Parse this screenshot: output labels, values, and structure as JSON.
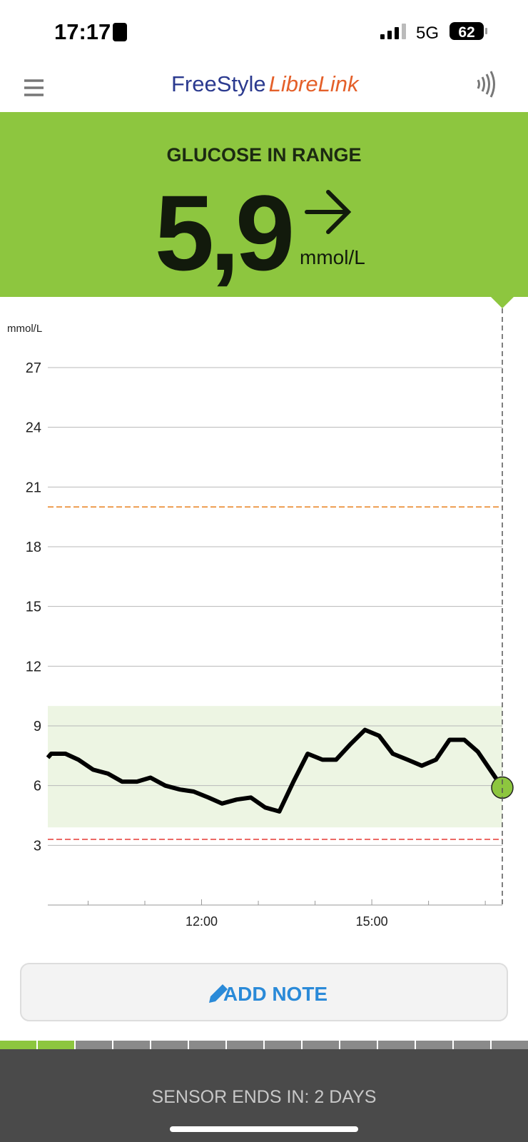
{
  "status_bar": {
    "time": "17:17",
    "network": "5G",
    "battery": "62"
  },
  "header": {
    "brand_1": "FreeStyle",
    "brand_2": "LibreLink"
  },
  "reading": {
    "status": "GLUCOSE IN RANGE",
    "value": "5,9",
    "unit": "mmol/L"
  },
  "chart_data": {
    "type": "line",
    "y_label": "mmol/L",
    "x": [
      9.29,
      9.35,
      9.6,
      9.83,
      10.09,
      10.35,
      10.6,
      10.86,
      11.1,
      11.36,
      11.62,
      11.86,
      12.12,
      12.36,
      12.62,
      12.87,
      13.12,
      13.37,
      13.62,
      13.87,
      14.13,
      14.37,
      14.63,
      14.88,
      15.13,
      15.37,
      15.63,
      15.88,
      16.13,
      16.37,
      16.63,
      16.87,
      17.3
    ],
    "series": [
      {
        "color": "#000000",
        "values": [
          7.4,
          7.6,
          7.6,
          7.3,
          6.8,
          6.6,
          6.2,
          6.2,
          6.4,
          6.0,
          5.8,
          5.7,
          5.4,
          5.1,
          5.3,
          5.4,
          4.9,
          4.7,
          6.2,
          7.6,
          7.3,
          7.3,
          8.1,
          8.8,
          8.5,
          7.6,
          7.3,
          7.0,
          7.3,
          8.3,
          8.3,
          7.7,
          5.9
        ]
      }
    ],
    "current_color": "#8dc63f",
    "xlim": [
      9.29,
      17.3
    ],
    "ylim": [
      0,
      27
    ],
    "yticks": [
      3,
      6,
      9,
      12,
      15,
      18,
      21,
      24,
      27
    ],
    "xticks": [
      {
        "value": 12,
        "label": "12:00"
      },
      {
        "value": 15,
        "label": "15:00"
      }
    ],
    "minor_xticks": [
      10,
      11,
      13,
      14,
      16,
      17
    ],
    "grid": true,
    "target_range": [
      3.9,
      10
    ],
    "target_color": "#edf5e3",
    "high_limit": 20,
    "high_color": "#e8801e",
    "low_limit": 3.3,
    "low_color": "#e53935"
  },
  "actions": {
    "add_note": "ADD NOTE"
  },
  "footer": {
    "sensor_status": "SENSOR ENDS IN: 2 DAYS"
  }
}
